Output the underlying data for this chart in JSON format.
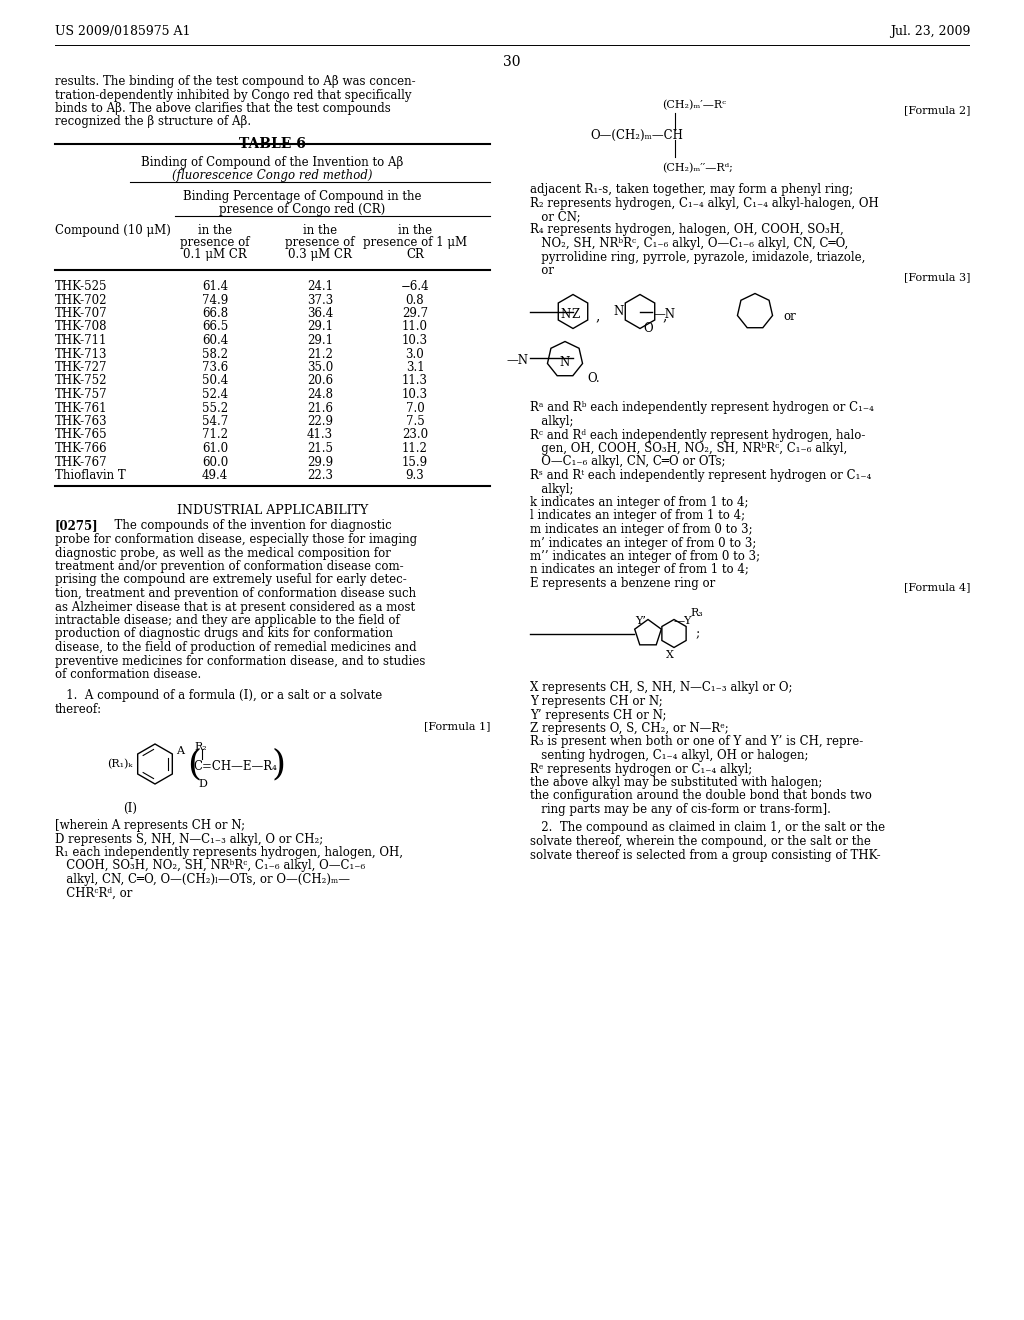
{
  "header_left": "US 2009/0185975 A1",
  "header_right": "Jul. 23, 2009",
  "page_number": "30",
  "background_color": "#ffffff",
  "text_color": "#000000",
  "intro_lines": [
    "results. The binding of the test compound to Aβ was concen-",
    "tration-dependently inhibited by Congo red that specifically",
    "binds to Aβ. The above clarifies that the test compounds",
    "recognized the β structure of Aβ."
  ],
  "table_title": "TABLE 6",
  "table_header1": "Binding of Compound of the Invention to Aβ",
  "table_header1b": "(fluorescence Congo red method)",
  "table_header2": "Binding Percentage of Compound in the",
  "table_header2b": "presence of Congo red (CR)",
  "col_headers": [
    "Compound (10 μM)",
    "in the\npresence of\n0.1 μM CR",
    "in the\npresence of\n0.3 μM CR",
    "in the\npresence of 1 μM\nCR"
  ],
  "table_data": [
    [
      "THK-525",
      "61.4",
      "24.1",
      "−6.4"
    ],
    [
      "THK-702",
      "74.9",
      "37.3",
      "0.8"
    ],
    [
      "THK-707",
      "66.8",
      "36.4",
      "29.7"
    ],
    [
      "THK-708",
      "66.5",
      "29.1",
      "11.0"
    ],
    [
      "THK-711",
      "60.4",
      "29.1",
      "10.3"
    ],
    [
      "THK-713",
      "58.2",
      "21.2",
      "3.0"
    ],
    [
      "THK-727",
      "73.6",
      "35.0",
      "3.1"
    ],
    [
      "THK-752",
      "50.4",
      "20.6",
      "11.3"
    ],
    [
      "THK-757",
      "52.4",
      "24.8",
      "10.3"
    ],
    [
      "THK-761",
      "55.2",
      "21.6",
      "7.0"
    ],
    [
      "THK-763",
      "54.7",
      "22.9",
      "7.5"
    ],
    [
      "THK-765",
      "71.2",
      "41.3",
      "23.0"
    ],
    [
      "THK-766",
      "61.0",
      "21.5",
      "11.2"
    ],
    [
      "THK-767",
      "60.0",
      "29.9",
      "15.9"
    ],
    [
      "Thioflavin T",
      "49.4",
      "22.3",
      "9.3"
    ]
  ],
  "industrial_title": "INDUSTRIAL APPLICABILITY",
  "ind_lines": [
    "[0275]   The compounds of the invention for diagnostic",
    "probe for conformation disease, especially those for imaging",
    "diagnostic probe, as well as the medical composition for",
    "treatment and/or prevention of conformation disease com-",
    "prising the compound are extremely useful for early detec-",
    "tion, treatment and prevention of conformation disease such",
    "as Alzheimer disease that is at present considered as a most",
    "intractable disease; and they are applicable to the field of",
    "production of diagnostic drugs and kits for conformation",
    "disease, to the field of production of remedial medicines and",
    "preventive medicines for conformation disease, and to studies",
    "of conformation disease."
  ],
  "claim1_line1": "   1.  A compound of a formula (I), or a salt or a solvate",
  "claim1_line2": "thereof:",
  "wherein_lines": [
    "[wherein A represents CH or N;",
    "D represents S, NH, N—C₁₋₃ alkyl, O or CH₂;",
    "R₁ each independently represents hydrogen, halogen, OH,",
    "   COOH, SO₃H, NO₂, SH, NRᵇRᶜ, C₁₋₆ alkyl, O—C₁₋₆",
    "   alkyl, CN, C═O, O—(CH₂)ₗ—OTs, or O—(CH₂)ₘ—",
    "   CHRᶜRᵈ, or"
  ],
  "right_text2_lines": [
    "adjacent R₁-s, taken together, may form a phenyl ring;",
    "R₂ represents hydrogen, C₁₋₄ alkyl, C₁₋₄ alkyl-halogen, OH",
    "   or CN;",
    "R₄ represents hydrogen, halogen, OH, COOH, SO₃H,",
    "   NO₂, SH, NRᵇRᶜ, C₁₋₆ alkyl, O—C₁₋₆ alkyl, CN, C═O,",
    "   pyrrolidine ring, pyrrole, pyrazole, imidazole, triazole,",
    "   or"
  ],
  "right_text3_lines": [
    "Rᵃ and Rᵇ each independently represent hydrogen or C₁₋₄",
    "   alkyl;",
    "Rᶜ and Rᵈ each independently represent hydrogen, halo-",
    "   gen, OH, COOH, SO₃H, NO₂, SH, NRᵇRᶜ, C₁₋₆ alkyl,",
    "   O—C₁₋₆ alkyl, CN, C═O or OTs;",
    "Rˢ and Rᵗ each independently represent hydrogen or C₁₋₄",
    "   alkyl;"
  ],
  "right_text4_lines": [
    "k indicates an integer of from 1 to 4;",
    "l indicates an integer of from 1 to 4;",
    "m indicates an integer of from 0 to 3;",
    "m’ indicates an integer of from 0 to 3;",
    "m’’ indicates an integer of from 0 to 3;",
    "n indicates an integer of from 1 to 4;",
    "E represents a benzene ring or"
  ],
  "right_text5_lines": [
    "X represents CH, S, NH, N—C₁₋₃ alkyl or O;",
    "Y represents CH or N;",
    "Y’ represents CH or N;",
    "Z represents O, S, CH₂, or N—Rᵉ;",
    "R₃ is present when both or one of Y and Y’ is CH, repre-",
    "   senting hydrogen, C₁₋₄ alkyl, OH or halogen;",
    "Rᵉ represents hydrogen or C₁₋₄ alkyl;",
    "the above alkyl may be substituted with halogen;",
    "the configuration around the double bond that bonds two",
    "   ring parts may be any of cis-form or trans-form]."
  ],
  "claim2_lines": [
    "   2.  The compound as claimed in claim 1, or the salt or the",
    "solvate thereof, wherein the compound, or the salt or the",
    "solvate thereof is selected from a group consisting of THK-"
  ]
}
